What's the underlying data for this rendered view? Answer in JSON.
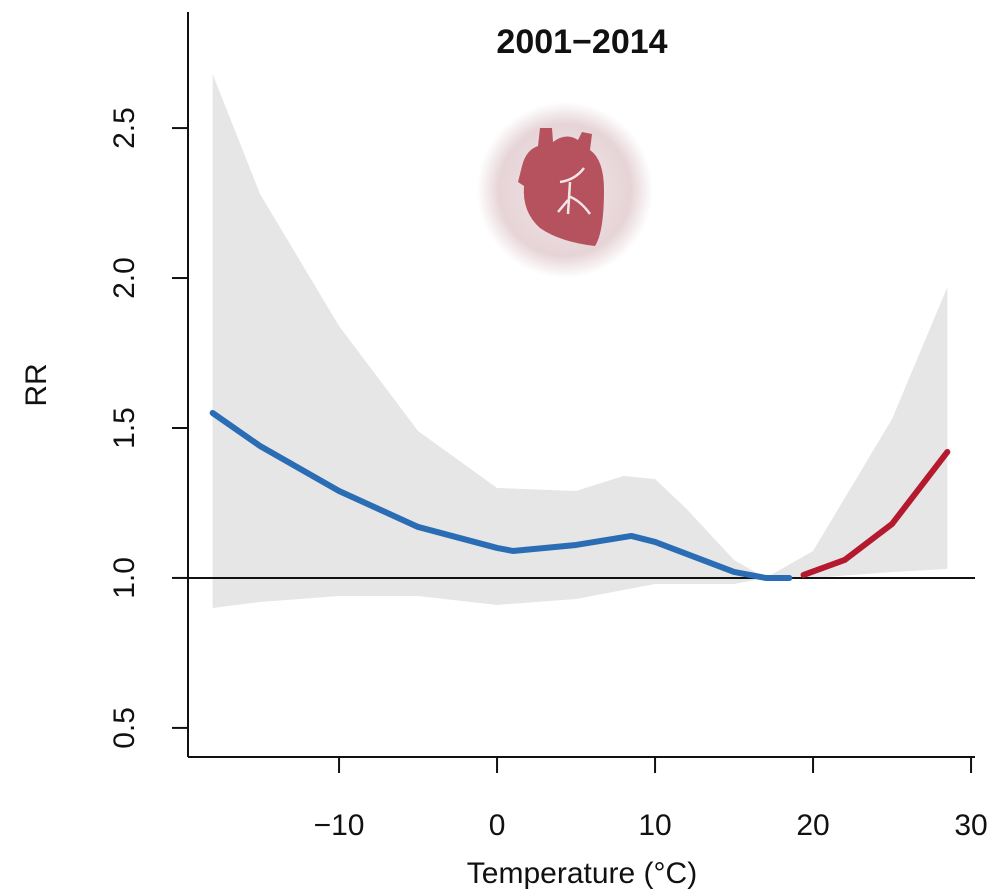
{
  "chart_data": {
    "type": "line",
    "title": "2001−2014",
    "x_label": "Temperature (°C)",
    "y_label": "RR",
    "xlim": [
      -19.56,
      30.25
    ],
    "ylim": [
      0.403,
      2.887
    ],
    "xticks": [
      {
        "value": -10,
        "label": "−10"
      },
      0,
      10,
      20,
      30
    ],
    "yticks": [
      0.5,
      {
        "value": 1.0,
        "label": "1.0"
      },
      1.5,
      {
        "value": 2.0,
        "label": "2.0"
      },
      2.5
    ],
    "hline": 1,
    "band": {
      "color": "#e6e6e6",
      "x": [
        -18,
        -15,
        -10,
        -5,
        0,
        5,
        8,
        10,
        12,
        15,
        17,
        20,
        25,
        28.5
      ],
      "upper": [
        2.68,
        2.28,
        1.84,
        1.49,
        1.3,
        1.29,
        1.34,
        1.33,
        1.23,
        1.06,
        1.0,
        1.09,
        1.53,
        1.97
      ],
      "lower": [
        0.9,
        0.92,
        0.94,
        0.94,
        0.91,
        0.93,
        0.96,
        0.98,
        0.98,
        0.98,
        1.0,
        1.0,
        1.02,
        1.03
      ]
    },
    "series": [
      {
        "color": "#2a6db5",
        "x": [
          -18,
          -15,
          -10,
          -5,
          0,
          1,
          5,
          8.5,
          10,
          12,
          15,
          17,
          18.5
        ],
        "values": [
          1.55,
          1.44,
          1.29,
          1.17,
          1.1,
          1.09,
          1.11,
          1.14,
          1.12,
          1.08,
          1.02,
          1.0,
          1.0
        ]
      },
      {
        "color": "#b5192e",
        "x": [
          19.4,
          22,
          25,
          28.5
        ],
        "values": [
          1.01,
          1.06,
          1.18,
          1.42
        ]
      }
    ]
  }
}
